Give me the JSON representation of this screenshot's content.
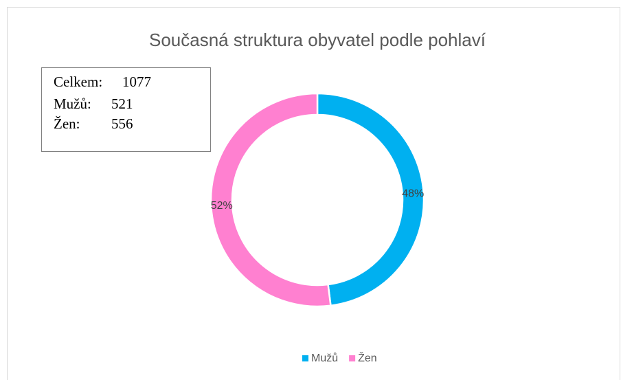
{
  "chart_data": {
    "type": "donut",
    "title": "Současná struktura obyvatel podle pohlaví",
    "categories": [
      "Mužů",
      "Žen"
    ],
    "values": [
      48,
      52
    ],
    "value_labels": [
      "48%",
      "52%"
    ],
    "colors": [
      "#00b0f0",
      "#ff80d0"
    ],
    "info_box": [
      {
        "label": "Celkem:",
        "value": 1077
      },
      {
        "label": "Mužů:",
        "value": 521
      },
      {
        "label": "Žen:",
        "value": 556
      }
    ],
    "legend": "bottom"
  }
}
